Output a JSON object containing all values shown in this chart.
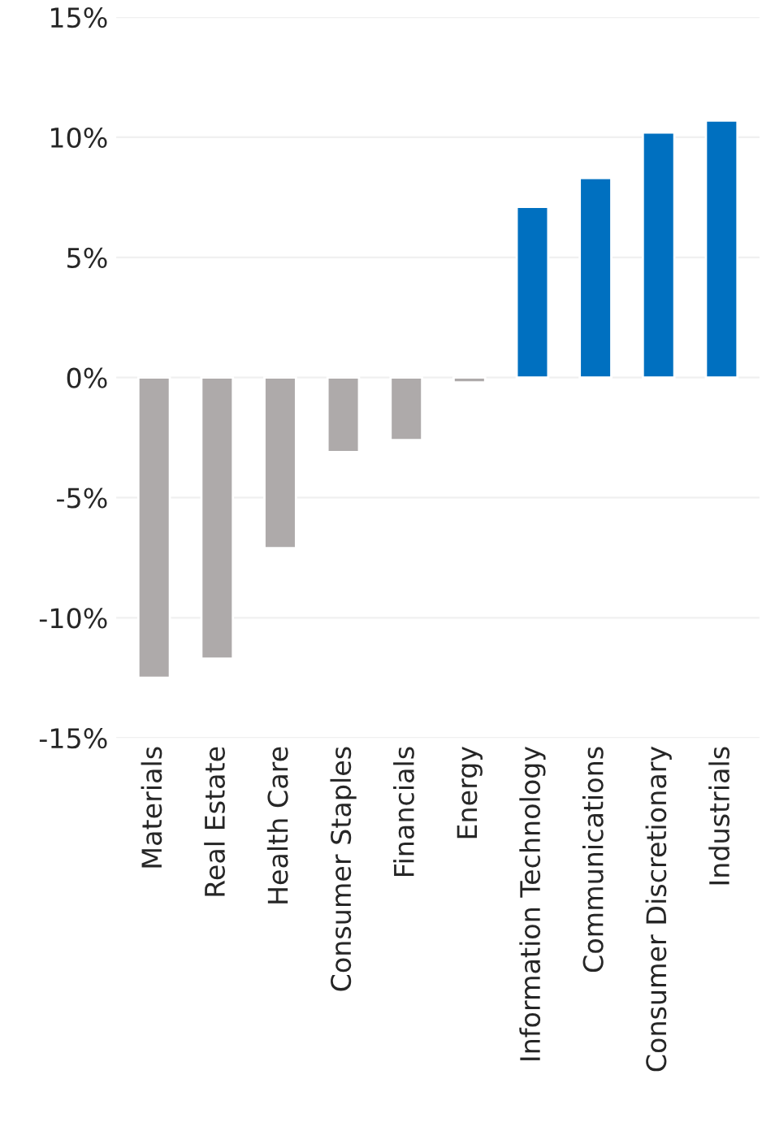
{
  "chart_data": {
    "type": "bar",
    "categories": [
      "Materials",
      "Real Estate",
      "Health Care",
      "Consumer Staples",
      "Financials",
      "Energy",
      "Information Technology",
      "Communications",
      "Consumer Discretionary",
      "Industrials"
    ],
    "values": [
      -12.5,
      -11.7,
      -7.1,
      -3.1,
      -2.6,
      -0.2,
      7.1,
      8.3,
      10.2,
      10.7
    ],
    "colors": [
      "#aeaaaa",
      "#aeaaaa",
      "#aeaaaa",
      "#aeaaaa",
      "#aeaaaa",
      "#aeaaaa",
      "#0070c0",
      "#0070c0",
      "#0070c0",
      "#0070c0"
    ],
    "ylim": [
      -15,
      15
    ],
    "yticks": [
      {
        "value": -15,
        "label": "-15%"
      },
      {
        "value": -10,
        "label": "-10%"
      },
      {
        "value": -5,
        "label": "-5%"
      },
      {
        "value": 0,
        "label": "0%"
      },
      {
        "value": 5,
        "label": "5%"
      },
      {
        "value": 10,
        "label": "10%"
      },
      {
        "value": 15,
        "label": "15%"
      }
    ],
    "grid": "y"
  }
}
